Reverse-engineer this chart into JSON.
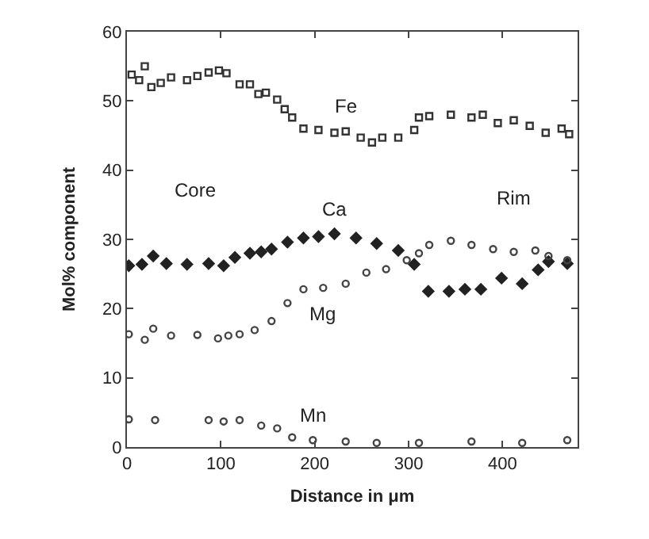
{
  "chart_data": {
    "type": "scatter",
    "xlabel": "Distance in μm",
    "ylabel": "Mol% component",
    "xlim": [
      0,
      480
    ],
    "ylim": [
      0,
      60
    ],
    "xticks": [
      0,
      100,
      200,
      300,
      400
    ],
    "yticks": [
      0,
      10,
      20,
      30,
      40,
      50,
      60
    ],
    "grid": false,
    "legend": false,
    "annotations": [
      "Core",
      "Rim"
    ],
    "series": [
      {
        "name": "Fe",
        "color": "#333333",
        "marker": "square",
        "x": [
          5,
          13,
          19,
          26,
          36,
          47,
          64,
          75,
          87,
          98,
          106,
          120,
          131,
          140,
          148,
          160,
          168,
          176,
          188,
          204,
          221,
          233,
          249,
          261,
          272,
          289,
          306,
          311,
          322,
          345,
          367,
          379,
          395,
          412,
          429,
          446,
          463,
          471
        ],
        "values": [
          53.8,
          53,
          55,
          52,
          52.6,
          53.4,
          53,
          53.6,
          54.1,
          54.4,
          54,
          52.4,
          52.4,
          51,
          51.2,
          50.2,
          48.8,
          47.6,
          46,
          45.8,
          45.4,
          45.6,
          44.7,
          44,
          44.7,
          44.7,
          45.8,
          47.6,
          47.8,
          48,
          47.6,
          48,
          46.8,
          47.2,
          46.4,
          45.4,
          46,
          45.2
        ]
      },
      {
        "name": "Ca",
        "color": "#222222",
        "marker": "diamond",
        "x": [
          2,
          16,
          28,
          42,
          64,
          87,
          103,
          115,
          131,
          143,
          154,
          171,
          188,
          204,
          221,
          244,
          266,
          289,
          306,
          321,
          343,
          360,
          377,
          399,
          421,
          438,
          449,
          469
        ],
        "values": [
          26.2,
          26.4,
          27.6,
          26.5,
          26.4,
          26.5,
          26.2,
          27.4,
          28,
          28.2,
          28.6,
          29.6,
          30.2,
          30.4,
          30.8,
          30.2,
          29.4,
          28.4,
          26.4,
          22.5,
          22.5,
          22.8,
          22.8,
          24.4,
          23.6,
          25.6,
          26.8,
          26.5
        ]
      },
      {
        "name": "Mg",
        "color": "#444444",
        "marker": "circle",
        "x": [
          2,
          19,
          28,
          47,
          75,
          97,
          108,
          120,
          136,
          154,
          171,
          188,
          209,
          233,
          255,
          276,
          298,
          311,
          322,
          345,
          367,
          390,
          412,
          435,
          449,
          469
        ],
        "values": [
          16.3,
          15.5,
          17.1,
          16.1,
          16.2,
          15.7,
          16.1,
          16.3,
          16.9,
          18.2,
          20.8,
          22.8,
          23,
          23.6,
          25.2,
          25.7,
          27,
          28,
          29.2,
          29.8,
          29.2,
          28.6,
          28.2,
          28.4,
          27.6,
          27
        ]
      },
      {
        "name": "Mn",
        "color": "#444444",
        "marker": "circle",
        "x": [
          2,
          30,
          87,
          103,
          120,
          143,
          160,
          176,
          198,
          233,
          266,
          311,
          367,
          421,
          469
        ],
        "values": [
          4,
          3.9,
          3.9,
          3.7,
          3.9,
          3.1,
          2.7,
          1.4,
          1,
          0.8,
          0.6,
          0.6,
          0.8,
          0.6,
          1
        ]
      }
    ]
  }
}
